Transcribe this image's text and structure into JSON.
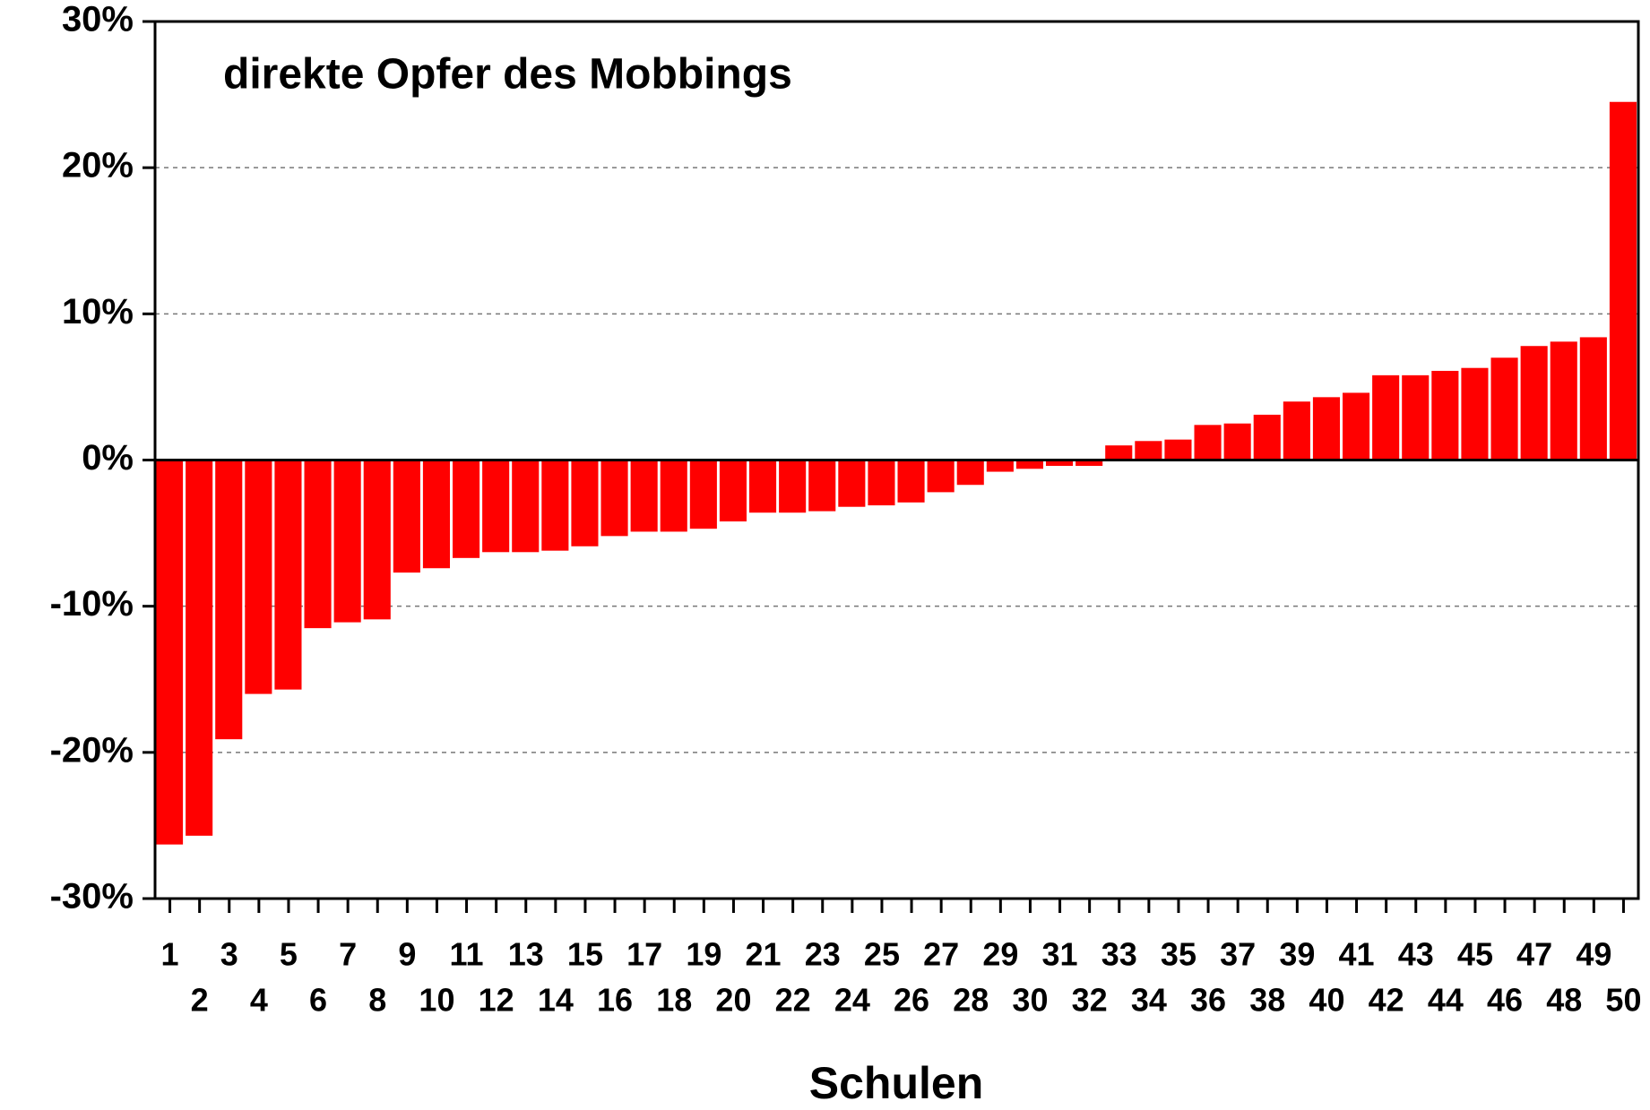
{
  "chart_data": {
    "type": "bar",
    "title": "direkte Opfer des Mobbings",
    "x_label": "Schulen",
    "categories": [
      "1",
      "2",
      "3",
      "4",
      "5",
      "6",
      "7",
      "8",
      "9",
      "10",
      "11",
      "12",
      "13",
      "14",
      "15",
      "16",
      "17",
      "18",
      "19",
      "20",
      "21",
      "22",
      "23",
      "24",
      "25",
      "26",
      "27",
      "28",
      "29",
      "30",
      "31",
      "32",
      "33",
      "34",
      "35",
      "36",
      "37",
      "38",
      "39",
      "40",
      "41",
      "42",
      "43",
      "44",
      "45",
      "46",
      "47",
      "48",
      "49",
      "50"
    ],
    "values": [
      -26.3,
      -25.7,
      -19.1,
      -16.0,
      -15.7,
      -11.5,
      -11.1,
      -10.9,
      -7.7,
      -7.4,
      -6.7,
      -6.3,
      -6.3,
      -6.2,
      -5.9,
      -5.2,
      -4.9,
      -4.9,
      -4.7,
      -4.2,
      -3.6,
      -3.6,
      -3.5,
      -3.2,
      -3.1,
      -2.9,
      -2.2,
      -1.7,
      -0.8,
      -0.6,
      -0.4,
      -0.4,
      1.0,
      1.3,
      1.4,
      2.4,
      2.5,
      3.1,
      4.0,
      4.3,
      4.6,
      5.8,
      5.8,
      6.1,
      6.3,
      7.0,
      7.8,
      8.1,
      8.4,
      24.5
    ],
    "color": "#ff0000",
    "ylim": [
      -30,
      30
    ],
    "yticks": [
      {
        "value": -30,
        "label": "-30%"
      },
      {
        "value": -20,
        "label": "-20%"
      },
      {
        "value": -10,
        "label": "-10%"
      },
      {
        "value": 0,
        "label": "0%"
      },
      {
        "value": 10,
        "label": "10%"
      },
      {
        "value": 20,
        "label": "20%"
      },
      {
        "value": 30,
        "label": "30%"
      }
    ],
    "grid": true
  }
}
